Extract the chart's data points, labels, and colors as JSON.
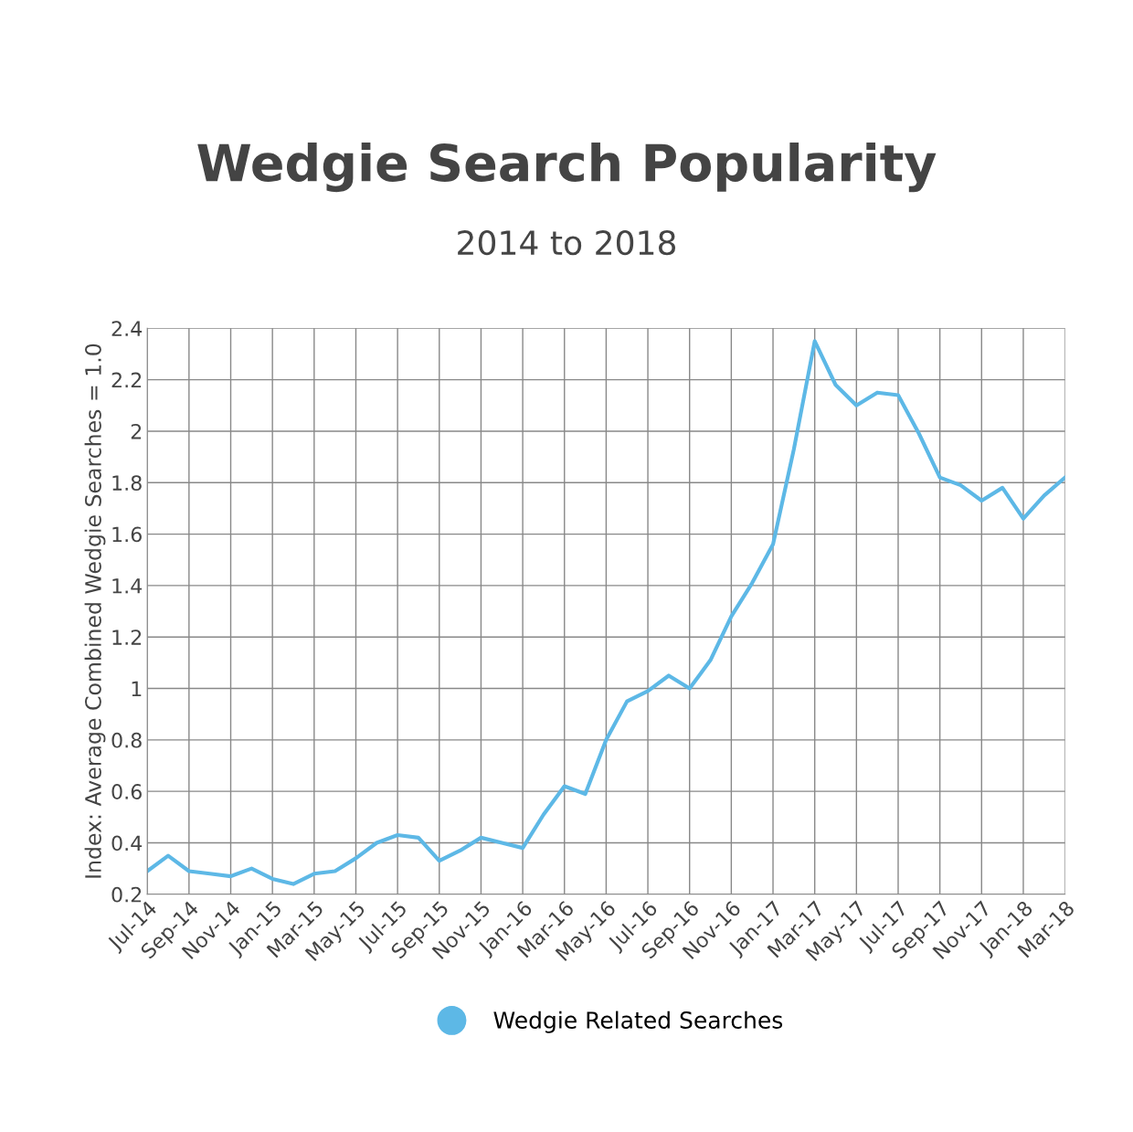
{
  "chart_data": {
    "type": "line",
    "title": "Wedgie Search Popularity",
    "subtitle": "2014 to 2018",
    "ylabel": "Index: Average Combined Wedgie Searches = 1.0",
    "categories": [
      "Jul-14",
      null,
      "Sep-14",
      null,
      "Nov-14",
      null,
      "Jan-15",
      null,
      "Mar-15",
      null,
      "May-15",
      null,
      "Jul-15",
      null,
      "Sep-15",
      null,
      "Nov-15",
      null,
      "Jan-16",
      null,
      "Mar-16",
      null,
      "May-16",
      null,
      "Jul-16",
      null,
      "Sep-16",
      null,
      "Nov-16",
      null,
      "Jan-17",
      null,
      "Mar-17",
      null,
      "May-17",
      null,
      "Jul-17",
      null,
      "Sep-17",
      null,
      "Nov-17",
      null,
      "Jan-18",
      null,
      "Mar-18"
    ],
    "series": [
      {
        "name": "Wedgie Related Searches",
        "color": "#5db8e6",
        "values": [
          0.29,
          0.35,
          0.29,
          0.28,
          0.27,
          0.3,
          0.26,
          0.24,
          0.28,
          0.29,
          0.34,
          0.4,
          0.43,
          0.42,
          0.33,
          0.37,
          0.42,
          0.4,
          0.38,
          0.51,
          0.62,
          0.59,
          0.8,
          0.95,
          0.99,
          1.05,
          1.0,
          1.11,
          1.28,
          1.41,
          1.56,
          1.93,
          2.35,
          2.18,
          2.1,
          2.15,
          2.14,
          1.99,
          1.82,
          1.79,
          1.73,
          1.78,
          1.66,
          1.75,
          1.82
        ]
      }
    ],
    "ylim": [
      0.2,
      2.4
    ],
    "yticks": [
      0.2,
      0.4,
      0.6,
      0.8,
      1,
      1.2,
      1.4,
      1.6,
      1.8,
      2,
      2.2,
      2.4
    ],
    "grid": true,
    "legend": "bottom",
    "marker": "none",
    "line_style": "solid"
  }
}
